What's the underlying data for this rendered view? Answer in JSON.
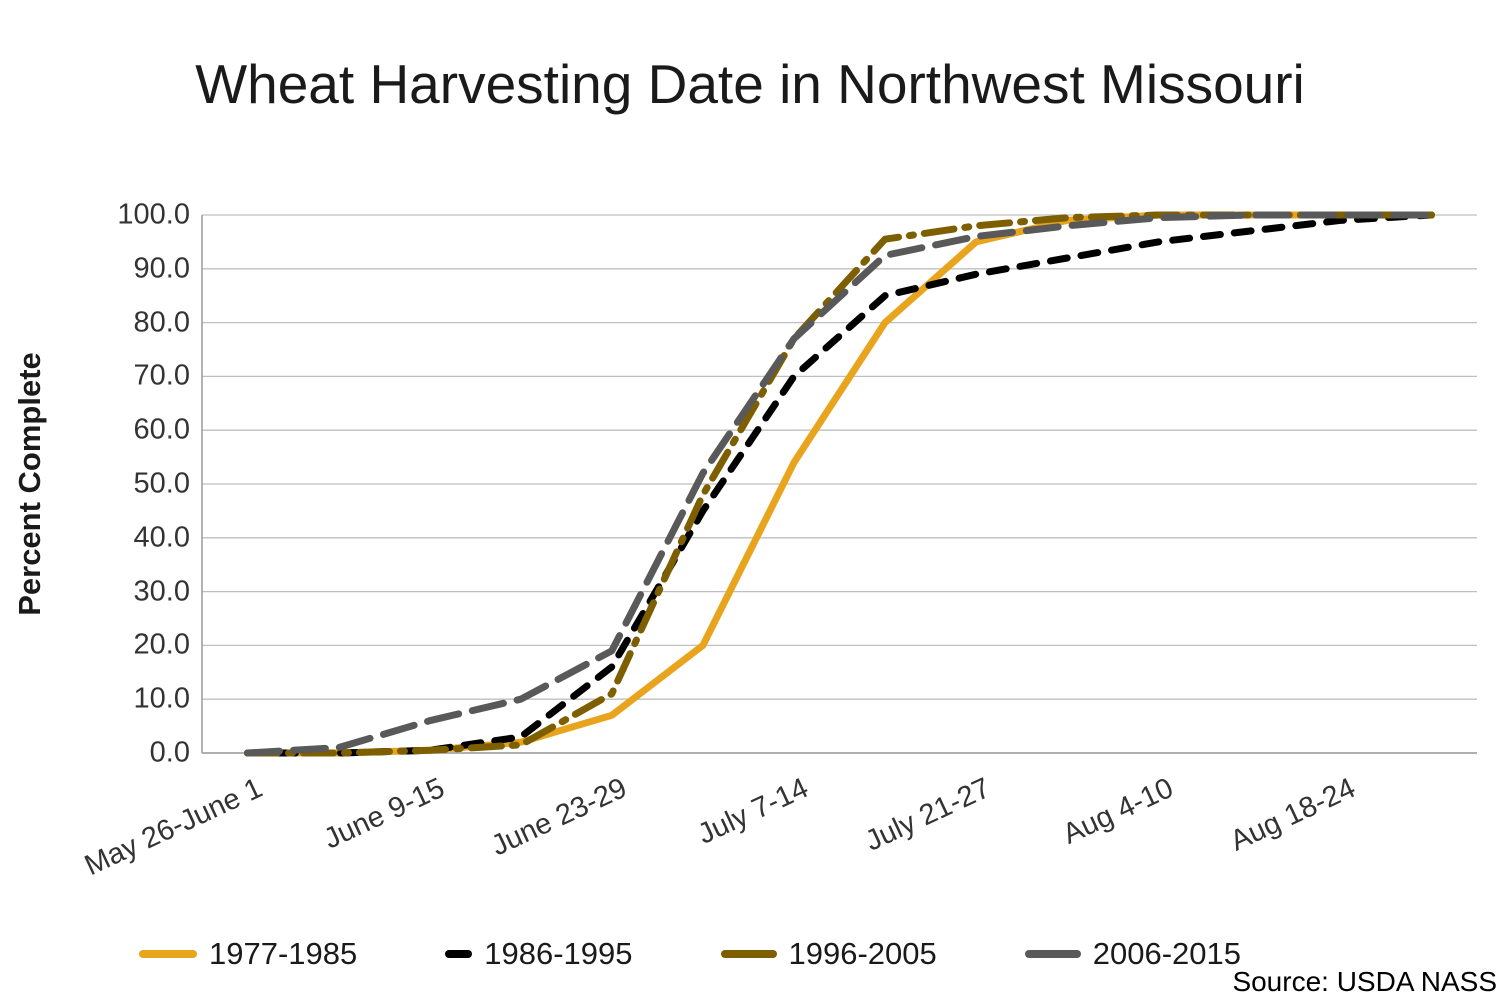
{
  "title": "Wheat Harvesting Date in Northwest Missouri",
  "source": "Source: USDA NASS",
  "y_axis": {
    "label": "Percent Complete",
    "ticks": [
      "0.0",
      "10.0",
      "20.0",
      "30.0",
      "40.0",
      "50.0",
      "60.0",
      "70.0",
      "80.0",
      "90.0",
      "100.0"
    ]
  },
  "x_axis": {
    "tick_labels": [
      "May 26-June 1",
      "June 9-15",
      "June 23-29",
      "July 7-14",
      "July 21-27",
      "Aug 4-10",
      "Aug 18-24"
    ],
    "tick_point_indices": [
      0,
      2,
      4,
      6,
      8,
      10,
      12
    ]
  },
  "chart_data": {
    "type": "line",
    "title": "Wheat Harvesting Date in Northwest Missouri",
    "xlabel": "",
    "ylabel": "Percent Complete",
    "ylim": [
      0,
      100
    ],
    "grid": true,
    "legend_position": "bottom",
    "x_point_count": 14,
    "x_note": "weekly periods; every other week labeled",
    "categories_labeled": [
      "May 26-June 1",
      "June 9-15",
      "June 23-29",
      "July 7-14",
      "July 21-27",
      "Aug 4-10",
      "Aug 18-24"
    ],
    "series": [
      {
        "name": "1977-1985",
        "color": "#E9A41E",
        "dash": "solid",
        "values": [
          0,
          0,
          0.5,
          2,
          7,
          20,
          54,
          80,
          95,
          99,
          100,
          100,
          100,
          100
        ]
      },
      {
        "name": "1986-1995",
        "color": "#000000",
        "dash": "dash",
        "values": [
          0,
          0,
          0.5,
          3,
          16,
          45,
          70,
          85,
          89,
          92,
          95,
          97,
          99,
          100
        ]
      },
      {
        "name": "1996-2005",
        "color": "#7D5F00",
        "dash": "dash-dot",
        "values": [
          0,
          0,
          0.5,
          1.5,
          11,
          48,
          77,
          95.5,
          98,
          99.5,
          100,
          100,
          100,
          100
        ]
      },
      {
        "name": "2006-2015",
        "color": "#595959",
        "dash": "long-dash",
        "values": [
          0,
          1,
          6,
          10,
          19,
          52,
          77,
          92.5,
          96,
          98,
          99.5,
          100,
          100,
          100
        ]
      }
    ]
  },
  "legend_swatch_widths": [
    58,
    27,
    56,
    56
  ]
}
